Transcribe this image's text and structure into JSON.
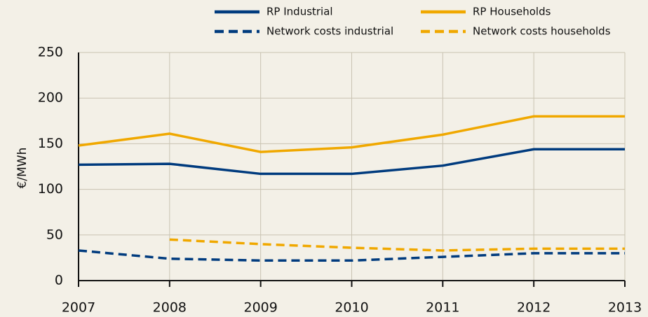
{
  "chart_data": {
    "type": "line",
    "ylabel": "€/MWh",
    "x": [
      2007,
      2008,
      2009,
      2010,
      2011,
      2012,
      2013
    ],
    "xlim": [
      2007,
      2013
    ],
    "xticks": [
      2007,
      2008,
      2009,
      2010,
      2011,
      2012,
      2013
    ],
    "ylim": [
      0,
      250
    ],
    "yticks": [
      0,
      50,
      100,
      150,
      200,
      250
    ],
    "grid": true,
    "legend": "top",
    "series": [
      {
        "name": "RP Industrial",
        "color": "#003b7e",
        "dashed": false,
        "values": [
          127,
          128,
          117,
          117,
          126,
          144,
          144
        ]
      },
      {
        "name": "RP Households",
        "color": "#f0a800",
        "dashed": false,
        "values": [
          148,
          161,
          141,
          146,
          160,
          180,
          180
        ]
      },
      {
        "name": "Network costs industrial",
        "color": "#003b7e",
        "dashed": true,
        "values": [
          33,
          24,
          22,
          22,
          26,
          30,
          30
        ]
      },
      {
        "name": "Network costs households",
        "color": "#f0a800",
        "dashed": true,
        "values": [
          null,
          45,
          40,
          36,
          33,
          35,
          35
        ]
      }
    ]
  }
}
